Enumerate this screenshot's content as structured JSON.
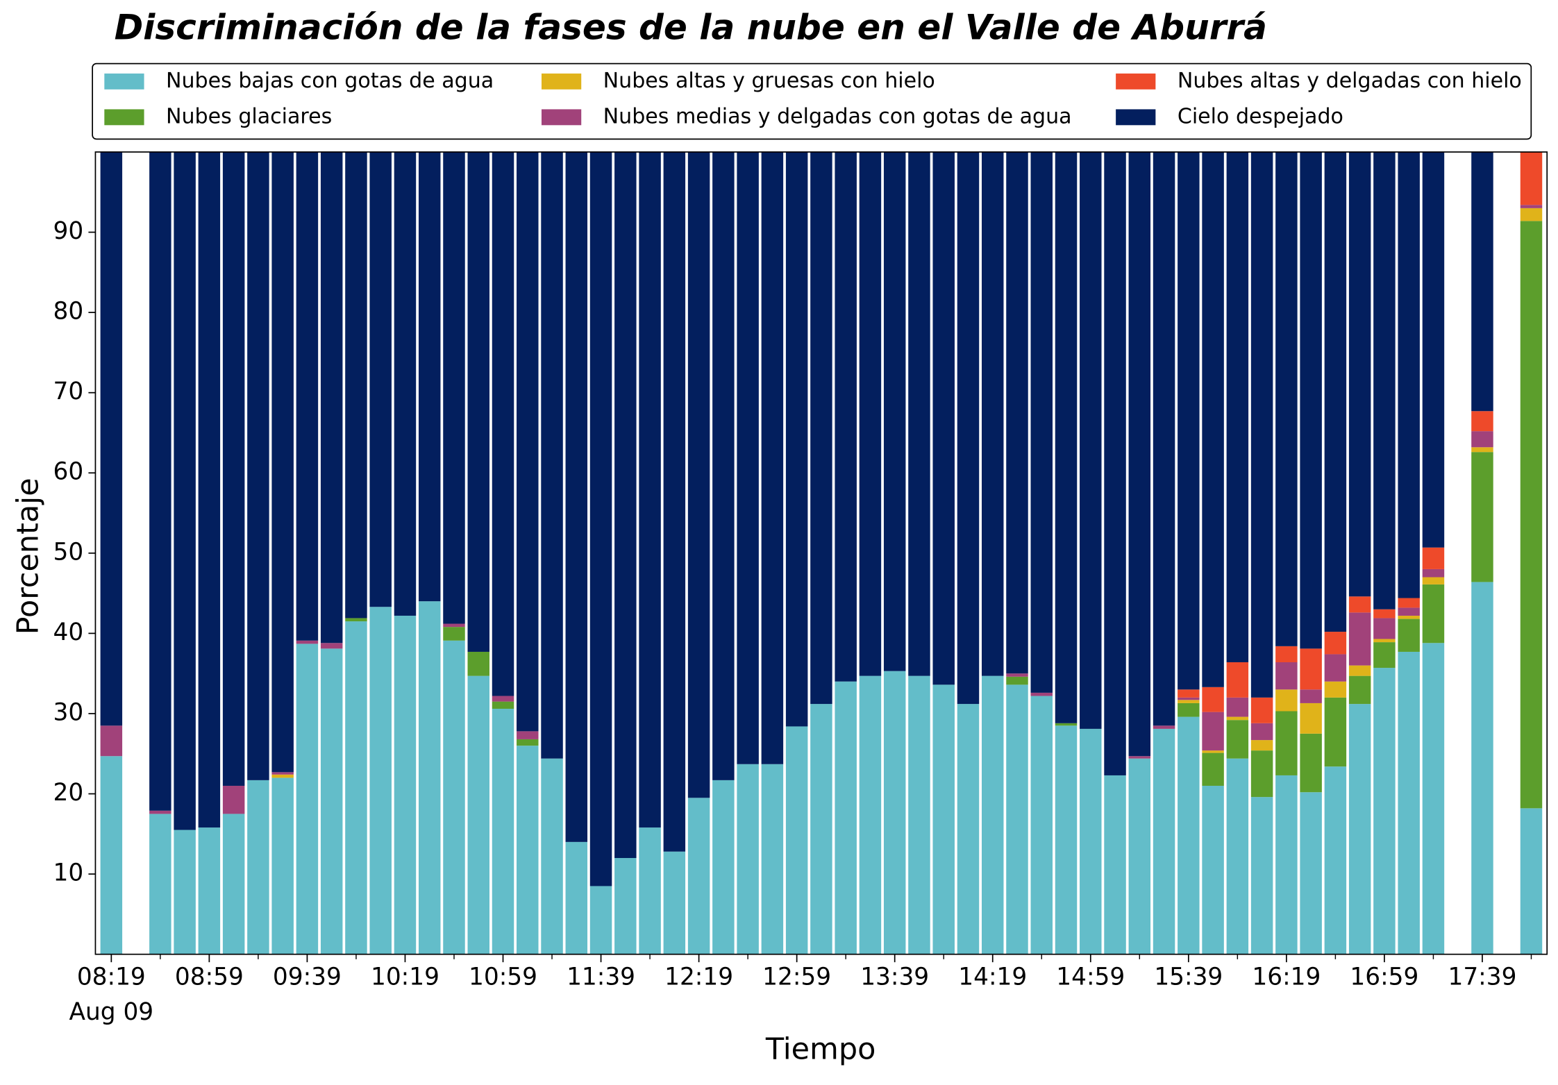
{
  "chart_data": {
    "type": "stacked_bar",
    "title": "Discriminación de la fases de la nube en el Valle de Aburrá",
    "x_label": "Tiempo",
    "y_label": "Porcentaje",
    "x_date_label": "Aug 09",
    "categories": [
      "08:19",
      null,
      null,
      null,
      "08:59",
      null,
      null,
      null,
      "09:39",
      null,
      null,
      null,
      "10:19",
      null,
      null,
      null,
      "10:59",
      null,
      null,
      null,
      "11:39",
      null,
      null,
      null,
      "12:19",
      null,
      null,
      null,
      "12:59",
      null,
      null,
      null,
      "13:39",
      null,
      null,
      null,
      "14:19",
      null,
      null,
      null,
      "14:59",
      null,
      null,
      null,
      "15:39",
      null,
      null,
      null,
      "16:19",
      null,
      null,
      null,
      "16:59",
      null,
      null,
      null,
      "17:39",
      null,
      null
    ],
    "ylim": [
      0,
      100
    ],
    "yticks": [
      10,
      20,
      30,
      40,
      50,
      60,
      70,
      80,
      90
    ],
    "legend": "top",
    "series": [
      {
        "name": "Nubes bajas con gotas de agua",
        "color": "#63bdc9",
        "values": [
          24.7,
          null,
          17.5,
          15.5,
          15.8,
          17.5,
          21.7,
          22.0,
          38.7,
          38.1,
          41.5,
          43.3,
          42.2,
          44.0,
          39.1,
          34.7,
          30.6,
          26.0,
          24.4,
          14.0,
          8.5,
          12.0,
          15.8,
          12.8,
          19.5,
          21.7,
          23.7,
          23.7,
          28.4,
          31.2,
          34.0,
          34.7,
          35.3,
          34.7,
          33.6,
          31.2,
          34.7,
          33.6,
          32.2,
          28.5,
          28.1,
          22.3,
          24.4,
          28.1,
          29.6,
          21.0,
          24.4,
          19.6,
          22.3,
          20.2,
          23.4,
          31.2,
          35.7,
          37.7,
          38.8,
          null,
          46.4,
          null,
          18.2
        ]
      },
      {
        "name": "Nubes glaciares",
        "color": "#5c9e2c",
        "values": [
          0,
          null,
          0,
          0,
          0,
          0,
          0,
          0,
          0,
          0,
          0.4,
          0,
          0,
          0,
          1.7,
          3.0,
          0.9,
          0.8,
          0,
          0,
          0,
          0,
          0,
          0,
          0,
          0,
          0,
          0,
          0,
          0,
          0,
          0,
          0,
          0,
          0,
          0,
          0,
          1.0,
          0,
          0.3,
          0,
          0,
          0,
          0,
          1.7,
          4.1,
          4.8,
          5.8,
          8.0,
          7.3,
          8.6,
          3.5,
          3.2,
          4.1,
          7.3,
          null,
          16.2,
          null,
          73.2
        ]
      },
      {
        "name": "Nubes altas y gruesas con hielo",
        "color": "#e0b31a",
        "values": [
          0,
          null,
          0,
          0,
          0,
          0,
          0,
          0.4,
          0,
          0,
          0,
          0,
          0,
          0,
          0,
          0,
          0,
          0,
          0,
          0,
          0,
          0,
          0,
          0,
          0,
          0,
          0,
          0,
          0,
          0,
          0,
          0,
          0,
          0,
          0,
          0,
          0,
          0,
          0,
          0,
          0,
          0,
          0,
          0,
          0.4,
          0.3,
          0.4,
          1.3,
          2.7,
          3.8,
          2.0,
          1.3,
          0.4,
          0.4,
          0.9,
          null,
          0.6,
          null,
          1.6
        ]
      },
      {
        "name": "Nubes medias y delgadas con gotas de agua",
        "color": "#a1427a",
        "values": [
          3.8,
          null,
          0.4,
          0,
          0,
          3.5,
          0,
          0.3,
          0.4,
          0.7,
          0,
          0,
          0,
          0,
          0.4,
          0,
          0.7,
          1.0,
          0,
          0,
          0,
          0,
          0,
          0,
          0,
          0,
          0,
          0,
          0,
          0,
          0,
          0,
          0,
          0,
          0,
          0,
          0,
          0.4,
          0.4,
          0,
          0,
          0,
          0.3,
          0.4,
          0.3,
          4.8,
          2.4,
          2.1,
          3.4,
          1.7,
          3.4,
          6.6,
          2.6,
          1.0,
          1.0,
          null,
          2.0,
          null,
          0.4
        ]
      },
      {
        "name": "Nubes altas y delgadas con hielo",
        "color": "#ee4a2a",
        "values": [
          0,
          null,
          0,
          0,
          0,
          0,
          0,
          0,
          0,
          0,
          0,
          0,
          0,
          0,
          0,
          0,
          0,
          0,
          0,
          0,
          0,
          0,
          0,
          0,
          0,
          0,
          0,
          0,
          0,
          0,
          0,
          0,
          0,
          0,
          0,
          0,
          0,
          0,
          0,
          0,
          0,
          0,
          0,
          0,
          1.0,
          3.1,
          4.4,
          3.2,
          2.0,
          5.1,
          2.8,
          2.0,
          1.1,
          1.2,
          2.7,
          null,
          2.5,
          null,
          6.6
        ]
      },
      {
        "name": "Cielo despejado",
        "color": "#031f5e",
        "values": [
          71.5,
          null,
          82.1,
          84.5,
          84.2,
          79.0,
          78.3,
          77.3,
          60.9,
          61.2,
          58.1,
          56.7,
          57.8,
          56.0,
          58.8,
          62.3,
          67.8,
          72.2,
          75.6,
          86.0,
          91.5,
          88.0,
          84.2,
          87.2,
          80.5,
          78.3,
          76.3,
          76.3,
          71.6,
          68.8,
          66.0,
          65.3,
          64.7,
          65.3,
          66.4,
          68.8,
          65.3,
          65.0,
          67.4,
          71.2,
          71.9,
          77.7,
          75.3,
          71.5,
          67.0,
          66.7,
          63.6,
          68.0,
          61.6,
          61.9,
          59.8,
          55.4,
          57.0,
          55.6,
          49.3,
          null,
          32.3,
          null,
          0
        ]
      }
    ]
  }
}
